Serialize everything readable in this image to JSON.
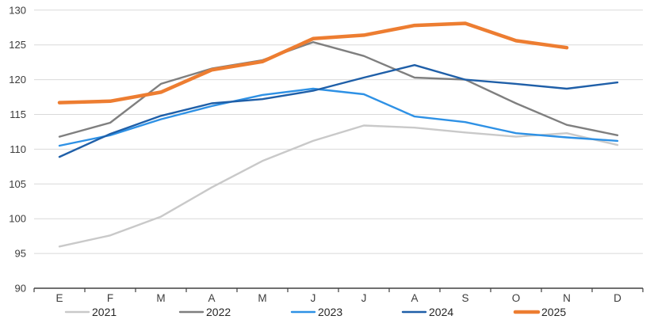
{
  "chart_data": {
    "type": "line",
    "title": "",
    "x_categories": [
      "E",
      "F",
      "M",
      "A",
      "M",
      "J",
      "J",
      "A",
      "S",
      "O",
      "N",
      "D"
    ],
    "y_axis": {
      "min": 90,
      "max": 130,
      "step": 5,
      "tick_labels": [
        "90",
        "95",
        "100",
        "105",
        "110",
        "115",
        "120",
        "125",
        "130"
      ]
    },
    "grid": {
      "show": true,
      "color": "#d9d9d9"
    },
    "axis_color": "#404040",
    "label_color": "#3c3c3c",
    "legend": {
      "position": "bottom",
      "labels": [
        "2021",
        "2022",
        "2023",
        "2024",
        "2025"
      ]
    },
    "series": [
      {
        "name": "2021",
        "color": "#c9c9c9",
        "stroke_width": 2.4,
        "values": [
          96.0,
          97.6,
          100.3,
          104.5,
          108.3,
          111.2,
          113.4,
          113.1,
          112.4,
          111.8,
          112.3,
          110.6
        ]
      },
      {
        "name": "2022",
        "color": "#7f7f7f",
        "stroke_width": 2.4,
        "values": [
          111.8,
          113.8,
          119.4,
          121.6,
          122.8,
          125.4,
          123.4,
          120.3,
          120.0,
          116.6,
          113.5,
          112.0
        ]
      },
      {
        "name": "2023",
        "color": "#2e91e5",
        "stroke_width": 2.4,
        "values": [
          110.5,
          112.0,
          114.3,
          116.2,
          117.8,
          118.7,
          117.9,
          114.7,
          113.9,
          112.3,
          111.7,
          111.2
        ]
      },
      {
        "name": "2024",
        "color": "#1f5fa8",
        "stroke_width": 2.4,
        "values": [
          108.9,
          112.2,
          114.8,
          116.6,
          117.2,
          118.4,
          120.3,
          122.1,
          120.0,
          119.4,
          118.7,
          119.6
        ]
      },
      {
        "name": "2025",
        "color": "#ed7d31",
        "stroke_width": 4.5,
        "values": [
          116.7,
          116.9,
          118.2,
          121.4,
          122.6,
          125.9,
          126.4,
          127.8,
          128.1,
          125.6,
          124.6,
          null
        ]
      }
    ]
  }
}
